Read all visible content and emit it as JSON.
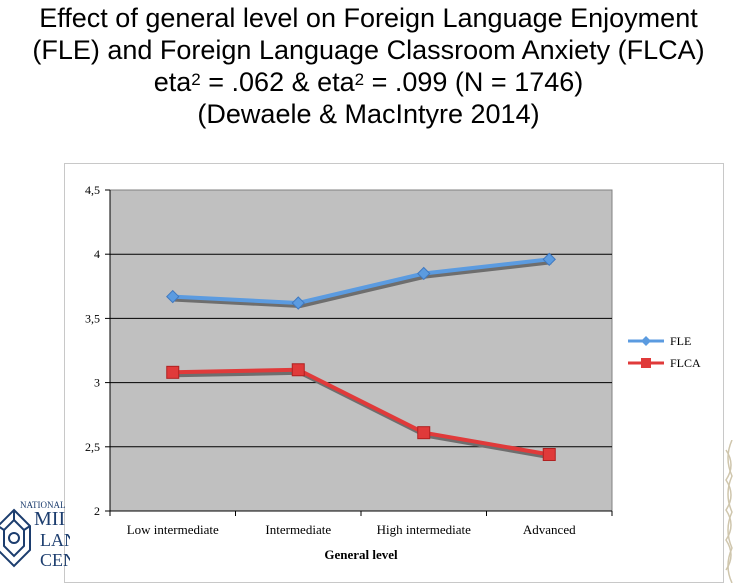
{
  "title": {
    "line1": "Effect of general level on Foreign Language Enjoyment",
    "line2": "(FLE) and Foreign Language Classroom Anxiety (FLCA)",
    "line3_a": "eta",
    "line3_sup1": "2",
    "line3_b": " = .062 & eta",
    "line3_sup2": "2",
    "line3_c": " = .099 (N = 1746)",
    "line4": "(Dewaele & MacIntyre 2014)"
  },
  "logo": {
    "line1": "NATIONAL",
    "line2": "MII",
    "line3": "LAN",
    "line4": "CEN"
  },
  "chart_data": {
    "type": "line",
    "title": "",
    "xlabel": "General level",
    "ylabel": "",
    "categories": [
      "Low intermediate",
      "Intermediate",
      "High intermediate",
      "Advanced"
    ],
    "ylim": [
      2,
      4.5
    ],
    "y_ticks": [
      "2",
      "2,5",
      "3",
      "3,5",
      "4",
      "4,5"
    ],
    "grid": true,
    "legend_position": "right",
    "plot_background": "#c0c0c0",
    "series": [
      {
        "name": "FLE",
        "values": [
          3.67,
          3.62,
          3.85,
          3.96
        ],
        "color": "#5b9be0",
        "marker": "diamond"
      },
      {
        "name": "FLCA",
        "values": [
          3.08,
          3.1,
          2.61,
          2.44
        ],
        "color": "#e03a3a",
        "marker": "square"
      }
    ]
  }
}
